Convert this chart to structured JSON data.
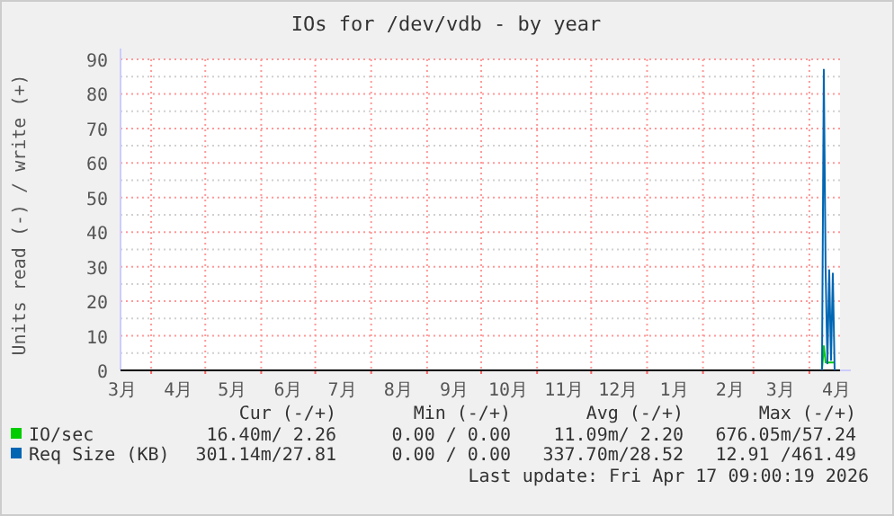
{
  "chart_data": {
    "type": "line",
    "title": "IOs for /dev/vdb - by year",
    "ylabel": "Units read (-) / write (+)",
    "xlim": [
      "2025-03-15",
      "2026-04-18"
    ],
    "xticks": [
      {
        "value": "2025-03-16",
        "label": "3月"
      },
      {
        "value": "2025-04-01",
        "label": null
      },
      {
        "value": "2025-04-16",
        "label": "4月"
      },
      {
        "value": "2025-05-01",
        "label": null
      },
      {
        "value": "2025-05-16",
        "label": "5月"
      },
      {
        "value": "2025-06-01",
        "label": null
      },
      {
        "value": "2025-06-16",
        "label": "6月"
      },
      {
        "value": "2025-07-01",
        "label": null
      },
      {
        "value": "2025-07-16",
        "label": "7月"
      },
      {
        "value": "2025-08-01",
        "label": null
      },
      {
        "value": "2025-08-16",
        "label": "8月"
      },
      {
        "value": "2025-09-01",
        "label": null
      },
      {
        "value": "2025-09-16",
        "label": "9月"
      },
      {
        "value": "2025-10-01",
        "label": null
      },
      {
        "value": "2025-10-16",
        "label": "10月"
      },
      {
        "value": "2025-11-01",
        "label": null
      },
      {
        "value": "2025-11-16",
        "label": "11月"
      },
      {
        "value": "2025-12-01",
        "label": null
      },
      {
        "value": "2025-12-16",
        "label": "12月"
      },
      {
        "value": "2026-01-01",
        "label": null
      },
      {
        "value": "2026-01-16",
        "label": "1月"
      },
      {
        "value": "2026-02-01",
        "label": null
      },
      {
        "value": "2026-02-16",
        "label": "2月"
      },
      {
        "value": "2026-03-01",
        "label": null
      },
      {
        "value": "2026-03-16",
        "label": "3月"
      },
      {
        "value": "2026-04-01",
        "label": null
      },
      {
        "value": "2026-04-16",
        "label": "4月"
      }
    ],
    "ylim": [
      0,
      90
    ],
    "yticks": [
      0,
      {
        "value": 5,
        "label": null
      },
      10,
      {
        "value": 15,
        "label": null
      },
      20,
      {
        "value": 25,
        "label": null
      },
      30,
      {
        "value": 35,
        "label": null
      },
      40,
      {
        "value": 45,
        "label": null
      },
      50,
      {
        "value": 55,
        "label": null
      },
      60,
      {
        "value": 65,
        "label": null
      },
      70,
      {
        "value": 75,
        "label": null
      },
      80,
      {
        "value": 85,
        "label": null
      },
      90
    ],
    "grid": true,
    "legend": "bottom",
    "series": [
      {
        "name": "IO/sec",
        "color": "#00cc00",
        "x": [
          "2026-04-08",
          "2026-04-09",
          "2026-04-10",
          "2026-04-11",
          "2026-04-12",
          "2026-04-13",
          "2026-04-14",
          "2026-04-15"
        ],
        "values": [
          0,
          7,
          2.3,
          2.3,
          2.3,
          2.3,
          2.3,
          2.3
        ]
      },
      {
        "name": "Req Size (KB)",
        "color": "#0066b3",
        "x": [
          "2026-04-08",
          "2026-04-09",
          "2026-04-10",
          "2026-04-11",
          "2026-04-12",
          "2026-04-13",
          "2026-04-14",
          "2026-04-15"
        ],
        "values": [
          0,
          87,
          29,
          2,
          29,
          3,
          28,
          0
        ]
      }
    ],
    "annotations": [
      "Cur (-/+)",
      "Min (-/+)",
      "Avg (-/+)",
      "Max (-/+)",
      "16.40m/ 2.26",
      "0.00 / 0.00",
      "11.09m/ 2.20",
      "676.05m/57.24",
      "301.14m/27.81",
      "0.00 / 0.00",
      "337.70m/28.52",
      "12.91 /461.49",
      "Last update: Fri Apr 17 09:00:19 2026"
    ]
  }
}
